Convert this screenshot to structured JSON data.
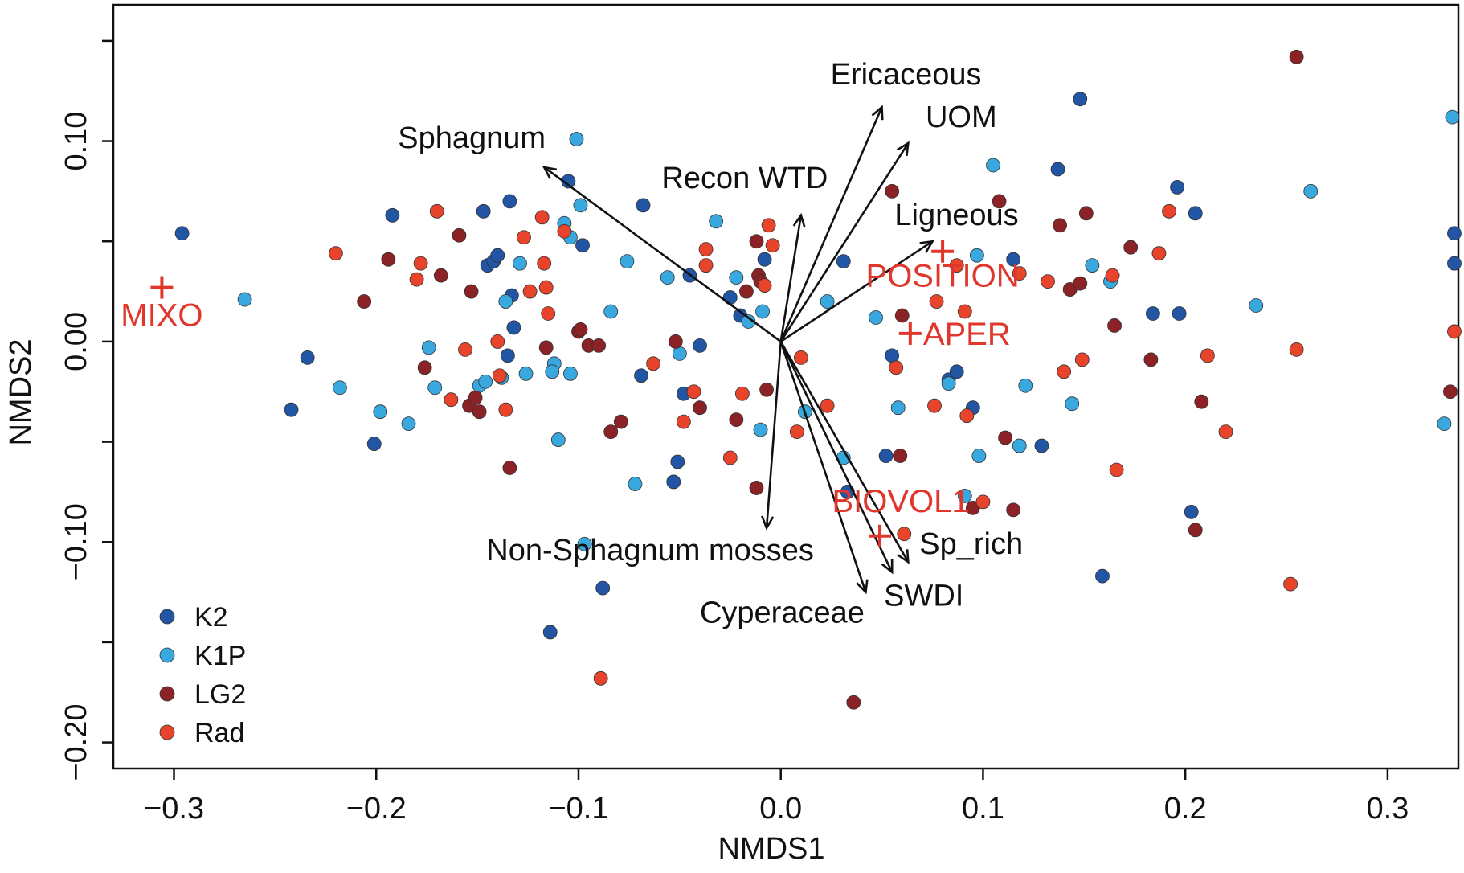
{
  "chart_data": {
    "type": "scatter",
    "title": "",
    "xlabel": "NMDS1",
    "ylabel": "NMDS2",
    "xlim": [
      -0.33,
      0.335
    ],
    "ylim": [
      -0.213,
      0.168
    ],
    "xticks": [
      -0.3,
      -0.2,
      -0.1,
      0.0,
      0.1,
      0.2,
      0.3
    ],
    "xtick_labels": [
      "−0.3",
      "−0.2",
      "−0.1",
      "0.0",
      "0.1",
      "0.2",
      "0.3"
    ],
    "yticks": [
      -0.2,
      -0.15,
      -0.1,
      -0.05,
      0.0,
      0.05,
      0.1,
      0.15
    ],
    "ytick_labels": [
      "−0.20",
      "",
      "−0.10",
      "",
      "0.00",
      "",
      "0.10",
      ""
    ],
    "grid": false,
    "legend": {
      "position": "bottom-left"
    },
    "series": [
      {
        "name": "K2",
        "color": "#2255a4",
        "points": [
          [
            -0.296,
            0.054
          ],
          [
            -0.242,
            -0.034
          ],
          [
            -0.234,
            -0.008
          ],
          [
            -0.201,
            -0.051
          ],
          [
            -0.192,
            0.063
          ],
          [
            -0.147,
            0.065
          ],
          [
            -0.145,
            0.038
          ],
          [
            -0.142,
            0.04
          ],
          [
            -0.14,
            0.043
          ],
          [
            -0.135,
            -0.007
          ],
          [
            -0.134,
            0.07
          ],
          [
            -0.133,
            0.023
          ],
          [
            -0.132,
            0.007
          ],
          [
            -0.114,
            -0.145
          ],
          [
            -0.105,
            0.08
          ],
          [
            -0.098,
            0.048
          ],
          [
            -0.088,
            -0.123
          ],
          [
            -0.068,
            0.068
          ],
          [
            -0.069,
            -0.017
          ],
          [
            -0.053,
            -0.07
          ],
          [
            -0.051,
            -0.06
          ],
          [
            -0.048,
            -0.026
          ],
          [
            -0.045,
            0.033
          ],
          [
            -0.04,
            -0.002
          ],
          [
            -0.025,
            0.022
          ],
          [
            -0.02,
            0.013
          ],
          [
            -0.008,
            0.041
          ],
          [
            0.031,
            0.04
          ],
          [
            0.033,
            -0.075
          ],
          [
            0.052,
            -0.057
          ],
          [
            0.055,
            -0.007
          ],
          [
            0.083,
            -0.019
          ],
          [
            0.087,
            -0.015
          ],
          [
            0.095,
            -0.033
          ],
          [
            0.115,
            0.041
          ],
          [
            0.129,
            -0.052
          ],
          [
            0.137,
            0.086
          ],
          [
            0.148,
            0.121
          ],
          [
            0.159,
            -0.117
          ],
          [
            0.184,
            0.014
          ],
          [
            0.197,
            0.014
          ],
          [
            0.196,
            0.077
          ],
          [
            0.205,
            0.064
          ],
          [
            0.203,
            -0.085
          ],
          [
            0.333,
            0.054
          ],
          [
            0.333,
            0.039
          ]
        ]
      },
      {
        "name": "K1P",
        "color": "#38a8de",
        "points": [
          [
            -0.265,
            0.021
          ],
          [
            -0.218,
            -0.023
          ],
          [
            -0.198,
            -0.035
          ],
          [
            -0.184,
            -0.041
          ],
          [
            -0.174,
            -0.003
          ],
          [
            -0.171,
            -0.023
          ],
          [
            -0.149,
            -0.022
          ],
          [
            -0.146,
            -0.02
          ],
          [
            -0.138,
            -0.018
          ],
          [
            -0.136,
            0.02
          ],
          [
            -0.129,
            0.039
          ],
          [
            -0.126,
            -0.016
          ],
          [
            -0.112,
            -0.011
          ],
          [
            -0.113,
            -0.015
          ],
          [
            -0.11,
            -0.049
          ],
          [
            -0.107,
            0.059
          ],
          [
            -0.104,
            0.052
          ],
          [
            -0.104,
            -0.016
          ],
          [
            -0.101,
            0.101
          ],
          [
            -0.099,
            0.068
          ],
          [
            -0.097,
            -0.101
          ],
          [
            -0.084,
            0.015
          ],
          [
            -0.076,
            0.04
          ],
          [
            -0.072,
            -0.071
          ],
          [
            -0.056,
            0.032
          ],
          [
            -0.05,
            -0.006
          ],
          [
            -0.032,
            0.06
          ],
          [
            -0.022,
            0.032
          ],
          [
            -0.016,
            0.01
          ],
          [
            -0.009,
            0.015
          ],
          [
            -0.01,
            -0.044
          ],
          [
            0.012,
            -0.035
          ],
          [
            0.023,
            0.02
          ],
          [
            0.031,
            -0.058
          ],
          [
            0.047,
            0.012
          ],
          [
            0.058,
            -0.033
          ],
          [
            0.083,
            -0.021
          ],
          [
            0.091,
            -0.077
          ],
          [
            0.097,
            0.043
          ],
          [
            0.098,
            -0.057
          ],
          [
            0.105,
            0.088
          ],
          [
            0.118,
            -0.052
          ],
          [
            0.121,
            -0.022
          ],
          [
            0.144,
            -0.031
          ],
          [
            0.154,
            0.038
          ],
          [
            0.163,
            0.03
          ],
          [
            0.235,
            0.018
          ],
          [
            0.262,
            0.075
          ],
          [
            0.332,
            0.112
          ],
          [
            0.328,
            -0.041
          ]
        ]
      },
      {
        "name": "LG2",
        "color": "#8b2226",
        "points": [
          [
            -0.206,
            0.02
          ],
          [
            -0.194,
            0.041
          ],
          [
            -0.176,
            -0.013
          ],
          [
            -0.168,
            0.033
          ],
          [
            -0.159,
            0.053
          ],
          [
            -0.154,
            -0.032
          ],
          [
            -0.153,
            0.025
          ],
          [
            -0.151,
            -0.028
          ],
          [
            -0.149,
            -0.035
          ],
          [
            -0.134,
            -0.063
          ],
          [
            -0.116,
            -0.003
          ],
          [
            -0.1,
            0.005
          ],
          [
            -0.099,
            0.006
          ],
          [
            -0.095,
            -0.002
          ],
          [
            -0.09,
            -0.002
          ],
          [
            -0.084,
            -0.045
          ],
          [
            -0.079,
            -0.04
          ],
          [
            -0.052,
            0.0
          ],
          [
            -0.04,
            -0.033
          ],
          [
            -0.022,
            -0.039
          ],
          [
            -0.017,
            0.025
          ],
          [
            -0.012,
            -0.073
          ],
          [
            -0.012,
            0.05
          ],
          [
            -0.011,
            0.033
          ],
          [
            -0.01,
            0.03
          ],
          [
            -0.007,
            -0.024
          ],
          [
            0.036,
            -0.18
          ],
          [
            0.055,
            0.075
          ],
          [
            0.059,
            -0.057
          ],
          [
            0.06,
            0.013
          ],
          [
            0.095,
            -0.083
          ],
          [
            0.108,
            0.07
          ],
          [
            0.111,
            -0.048
          ],
          [
            0.115,
            -0.084
          ],
          [
            0.138,
            0.058
          ],
          [
            0.143,
            0.026
          ],
          [
            0.148,
            0.029
          ],
          [
            0.151,
            0.064
          ],
          [
            0.165,
            0.008
          ],
          [
            0.173,
            0.047
          ],
          [
            0.183,
            -0.009
          ],
          [
            0.205,
            -0.094
          ],
          [
            0.208,
            -0.03
          ],
          [
            0.255,
            0.142
          ],
          [
            0.331,
            -0.025
          ]
        ]
      },
      {
        "name": "Rad",
        "color": "#e8432b",
        "points": [
          [
            -0.22,
            0.044
          ],
          [
            -0.18,
            0.031
          ],
          [
            -0.178,
            0.039
          ],
          [
            -0.17,
            0.065
          ],
          [
            -0.163,
            -0.029
          ],
          [
            -0.156,
            -0.004
          ],
          [
            -0.139,
            -0.017
          ],
          [
            -0.136,
            -0.034
          ],
          [
            -0.14,
            0.0
          ],
          [
            -0.127,
            0.052
          ],
          [
            -0.124,
            0.025
          ],
          [
            -0.117,
            0.039
          ],
          [
            -0.118,
            0.062
          ],
          [
            -0.115,
            0.014
          ],
          [
            -0.116,
            0.027
          ],
          [
            -0.107,
            0.055
          ],
          [
            -0.089,
            -0.168
          ],
          [
            -0.063,
            -0.011
          ],
          [
            -0.048,
            -0.04
          ],
          [
            -0.043,
            -0.025
          ],
          [
            -0.037,
            0.046
          ],
          [
            -0.037,
            0.038
          ],
          [
            -0.025,
            -0.058
          ],
          [
            -0.019,
            -0.026
          ],
          [
            -0.008,
            0.028
          ],
          [
            -0.006,
            0.058
          ],
          [
            -0.004,
            0.048
          ],
          [
            0.01,
            -0.008
          ],
          [
            0.008,
            -0.045
          ],
          [
            0.023,
            -0.032
          ],
          [
            0.057,
            -0.013
          ],
          [
            0.061,
            -0.096
          ],
          [
            0.076,
            -0.032
          ],
          [
            0.077,
            0.02
          ],
          [
            0.087,
            0.038
          ],
          [
            0.091,
            0.015
          ],
          [
            0.092,
            -0.037
          ],
          [
            0.1,
            -0.08
          ],
          [
            0.118,
            0.034
          ],
          [
            0.132,
            0.03
          ],
          [
            0.14,
            -0.015
          ],
          [
            0.149,
            -0.009
          ],
          [
            0.164,
            0.033
          ],
          [
            0.166,
            -0.064
          ],
          [
            0.187,
            0.044
          ],
          [
            0.192,
            0.065
          ],
          [
            0.211,
            -0.007
          ],
          [
            0.22,
            -0.045
          ],
          [
            0.252,
            -0.121
          ],
          [
            0.255,
            -0.004
          ],
          [
            0.333,
            0.005
          ]
        ]
      }
    ],
    "vectors": [
      {
        "label": "Sphagnum",
        "x": -0.117,
        "y": 0.087
      },
      {
        "label": "Ericaceous",
        "x": 0.05,
        "y": 0.117
      },
      {
        "label": "UOM",
        "x": 0.063,
        "y": 0.099
      },
      {
        "label": "Recon WTD",
        "x": 0.01,
        "y": 0.063
      },
      {
        "label": "Ligneous",
        "x": 0.075,
        "y": 0.05
      },
      {
        "label": "Non-Sphagnum mosses",
        "x": -0.007,
        "y": -0.093
      },
      {
        "label": "Sp_rich",
        "x": 0.063,
        "y": -0.11
      },
      {
        "label": "SWDI",
        "x": 0.055,
        "y": -0.115
      },
      {
        "label": "Cyperaceae",
        "x": 0.042,
        "y": -0.125
      }
    ],
    "supplementary": [
      {
        "label": "MIXO",
        "x": -0.306,
        "y": 0.027,
        "color": "#e0362b"
      },
      {
        "label": "POSITION",
        "x": 0.08,
        "y": 0.045,
        "color": "#e0362b"
      },
      {
        "label": "APER",
        "x": 0.064,
        "y": 0.004,
        "color": "#e0362b"
      },
      {
        "label": "BIOVOL1",
        "x": 0.049,
        "y": -0.097,
        "color": "#e0362b"
      }
    ]
  }
}
